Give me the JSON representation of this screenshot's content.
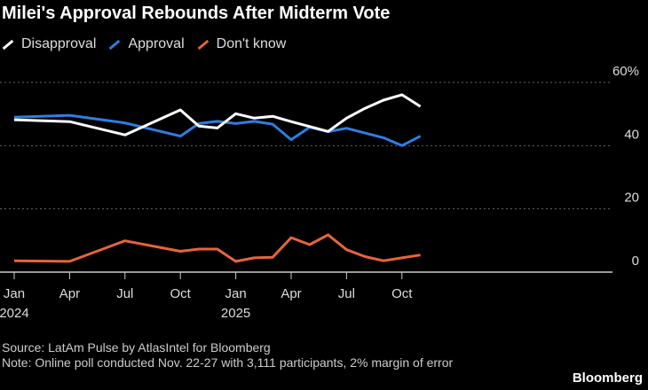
{
  "chart_data": {
    "type": "line",
    "title": "Milei's Approval Rebounds After Midterm Vote",
    "x": [
      "2024-01",
      "2024-04",
      "2024-07",
      "2024-10",
      "2024-11",
      "2024-12",
      "2025-01",
      "2025-02",
      "2025-03",
      "2025-04",
      "2025-05",
      "2025-06",
      "2025-07",
      "2025-08",
      "2025-09",
      "2025-10",
      "2025-11"
    ],
    "series": [
      {
        "name": "Disapproval",
        "color": "#ffffff",
        "values": [
          48.2,
          47.6,
          43.4,
          51.3,
          46.2,
          45.6,
          50.1,
          48.7,
          49.3,
          47.6,
          null,
          44.5,
          48.7,
          51.8,
          54.4,
          56.1,
          52.4
        ]
      },
      {
        "name": "Approval",
        "color": "#2f7de1",
        "values": [
          49.0,
          49.6,
          47.2,
          43.0,
          47.0,
          47.7,
          47.0,
          47.7,
          46.8,
          41.9,
          45.8,
          44.4,
          45.5,
          null,
          42.5,
          40.0,
          43.0
        ]
      },
      {
        "name": "Don't know",
        "color": "#e8643a",
        "values": [
          3.6,
          3.4,
          9.9,
          6.6,
          7.3,
          7.3,
          3.4,
          4.5,
          4.7,
          10.9,
          8.7,
          11.8,
          7.1,
          4.9,
          3.6,
          4.5,
          5.4
        ]
      }
    ],
    "ylim": [
      0,
      60
    ],
    "yticks": [
      {
        "v": 0,
        "label": "0"
      },
      {
        "v": 20,
        "label": "20"
      },
      {
        "v": 40,
        "label": "40"
      },
      {
        "v": 60,
        "label": "60%"
      }
    ],
    "xticks": [
      {
        "x": "2024-01",
        "label": "Jan",
        "sub": "2024"
      },
      {
        "x": "2024-04",
        "label": "Apr"
      },
      {
        "x": "2024-07",
        "label": "Jul"
      },
      {
        "x": "2024-10",
        "label": "Oct"
      },
      {
        "x": "2025-01",
        "label": "Jan",
        "sub": "2025"
      },
      {
        "x": "2025-04",
        "label": "Apr"
      },
      {
        "x": "2025-07",
        "label": "Jul"
      },
      {
        "x": "2025-10",
        "label": "Oct"
      }
    ],
    "grid": true,
    "legend_placement": "top-left"
  },
  "footer": {
    "source": "Source: LatAm Pulse by AtlasIntel for Bloomberg",
    "note": "Note: Online poll conducted Nov. 22-27 with 3,111 participants, 2% margin of error",
    "brand": "Bloomberg"
  }
}
